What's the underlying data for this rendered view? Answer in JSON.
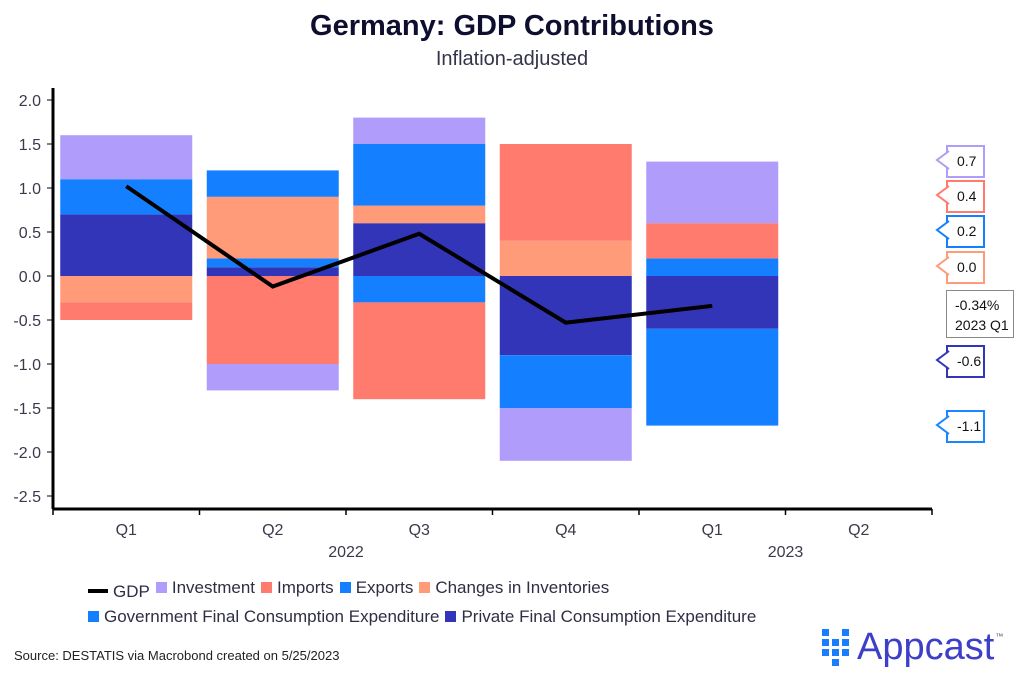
{
  "title": "Germany: GDP Contributions",
  "subtitle": "Inflation-adjusted",
  "source": "Source: DESTATIS via Macrobond created on 5/25/2023",
  "logo": {
    "text": "Appcast",
    "tm": "™",
    "icon": "appcast-dots-icon"
  },
  "colors": {
    "gdp": "#000000",
    "investment": "#b09cfb",
    "imports": "#ff7b6e",
    "exports": "#1480ff",
    "inventories": "#ff9b78",
    "government": "#1480ff",
    "private": "#3335b8"
  },
  "callouts": [
    {
      "text": "0.7",
      "color": "#b09cfb",
      "series": "Investment"
    },
    {
      "text": "0.4",
      "color": "#ff7b6e",
      "series": "Imports"
    },
    {
      "text": "0.2",
      "color": "#1480ff",
      "series": "Exports"
    },
    {
      "text": "0.0",
      "color": "#ff9b78",
      "series": "Changes in Inventories"
    },
    {
      "text": "-0.6",
      "color": "#3335b8",
      "series": "Private Final Consumption Expenditure"
    },
    {
      "text": "-1.1",
      "color": "#1a86ff",
      "series": "Government Final Consumption Expenditure"
    }
  ],
  "gdp_callout": {
    "value": "-0.34%",
    "period": "2023 Q1"
  },
  "chart_data": {
    "type": "bar",
    "stacked": true,
    "title": "Germany: GDP Contributions",
    "subtitle": "Inflation-adjusted",
    "xlabel": "",
    "ylabel": "",
    "ylim": [
      -2.5,
      2.0
    ],
    "yticks": [
      "2.0",
      "1.5",
      "1.0",
      "0.5",
      "0.0",
      "-0.5",
      "-1.0",
      "-1.5",
      "-2.0",
      "-2.5"
    ],
    "ytick_values": [
      2.0,
      1.5,
      1.0,
      0.5,
      0.0,
      -0.5,
      -1.0,
      -1.5,
      -2.0,
      -2.5
    ],
    "categories": [
      "Q1",
      "Q2",
      "Q3",
      "Q4",
      "Q1",
      "Q2"
    ],
    "year_labels": [
      {
        "label": "2022",
        "under_index": 2
      },
      {
        "label": "2023",
        "under_index": 4.5
      }
    ],
    "grid": false,
    "legend_position": "bottom",
    "series": [
      {
        "name": "Private Final Consumption Expenditure",
        "key": "private",
        "values": [
          0.7,
          0.1,
          0.6,
          -0.9,
          -0.6,
          null
        ]
      },
      {
        "name": "Government Final Consumption Expenditure",
        "key": "government",
        "values": [
          0.4,
          0.1,
          -0.3,
          0.0,
          -1.1,
          null
        ]
      },
      {
        "name": "Changes in Inventories",
        "key": "inventories",
        "values": [
          -0.3,
          0.7,
          0.2,
          0.4,
          0.0,
          null
        ]
      },
      {
        "name": "Exports",
        "key": "exports",
        "values": [
          0.0,
          0.3,
          0.7,
          -0.6,
          0.2,
          null
        ]
      },
      {
        "name": "Imports",
        "key": "imports",
        "values": [
          -0.2,
          -1.0,
          -1.1,
          1.1,
          0.4,
          null
        ]
      },
      {
        "name": "Investment",
        "key": "investment",
        "values": [
          0.5,
          -0.3,
          0.3,
          -0.6,
          0.7,
          null
        ]
      }
    ],
    "line_series": {
      "name": "GDP",
      "key": "gdp",
      "values": [
        1.02,
        -0.12,
        0.48,
        -0.53,
        -0.34,
        null
      ]
    },
    "legend": [
      {
        "name": "GDP",
        "key": "gdp",
        "kind": "line"
      },
      {
        "name": "Investment",
        "key": "investment",
        "kind": "box"
      },
      {
        "name": "Imports",
        "key": "imports",
        "kind": "box"
      },
      {
        "name": "Exports",
        "key": "exports",
        "kind": "box"
      },
      {
        "name": "Changes in Inventories",
        "key": "inventories",
        "kind": "box"
      },
      {
        "name": "Government Final Consumption Expenditure",
        "key": "government",
        "kind": "box"
      },
      {
        "name": "Private Final Consumption Expenditure",
        "key": "private",
        "kind": "box"
      }
    ]
  }
}
